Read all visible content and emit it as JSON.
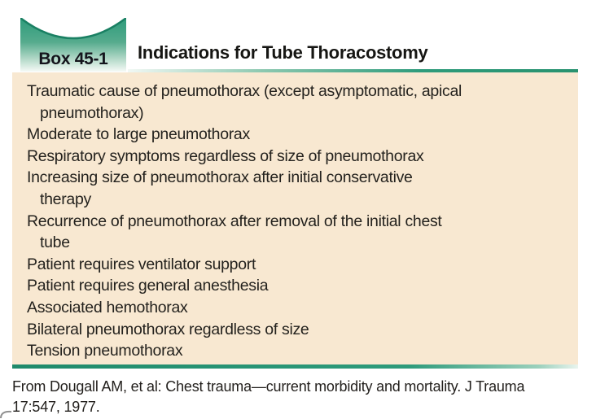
{
  "colors": {
    "teal": "#2E9B7B",
    "teal_dark_edge": "#1A8063",
    "peach_background": "#F8E8D1",
    "text": "#221F1C"
  },
  "header": {
    "box_label": "Box 45-1",
    "title": "Indications for Tube Thoracostomy"
  },
  "box": {
    "items": [
      {
        "lines": [
          "Traumatic cause of pneumothorax (except asymptomatic, apical",
          "pneumothorax)"
        ]
      },
      {
        "lines": [
          "Moderate to large pneumothorax"
        ]
      },
      {
        "lines": [
          "Respiratory symptoms regardless of size of pneumothorax"
        ]
      },
      {
        "lines": [
          "Increasing size of pneumothorax after initial conservative",
          "therapy"
        ]
      },
      {
        "lines": [
          "Recurrence of pneumothorax after removal of the initial chest",
          "tube"
        ]
      },
      {
        "lines": [
          "Patient requires ventilator support"
        ]
      },
      {
        "lines": [
          "Patient requires general anesthesia"
        ]
      },
      {
        "lines": [
          "Associated hemothorax"
        ]
      },
      {
        "lines": [
          "Bilateral pneumothorax regardless of size"
        ]
      },
      {
        "lines": [
          "Tension pneumothorax"
        ]
      }
    ]
  },
  "citation": {
    "full_text": "From Dougall AM, et al: Chest trauma—current morbidity and mortality. J Trauma 17:547, 1977.",
    "lines": [
      "From Dougall AM, et al: Chest trauma—current morbidity and mortality. J Trauma",
      "17:547, 1977."
    ]
  }
}
